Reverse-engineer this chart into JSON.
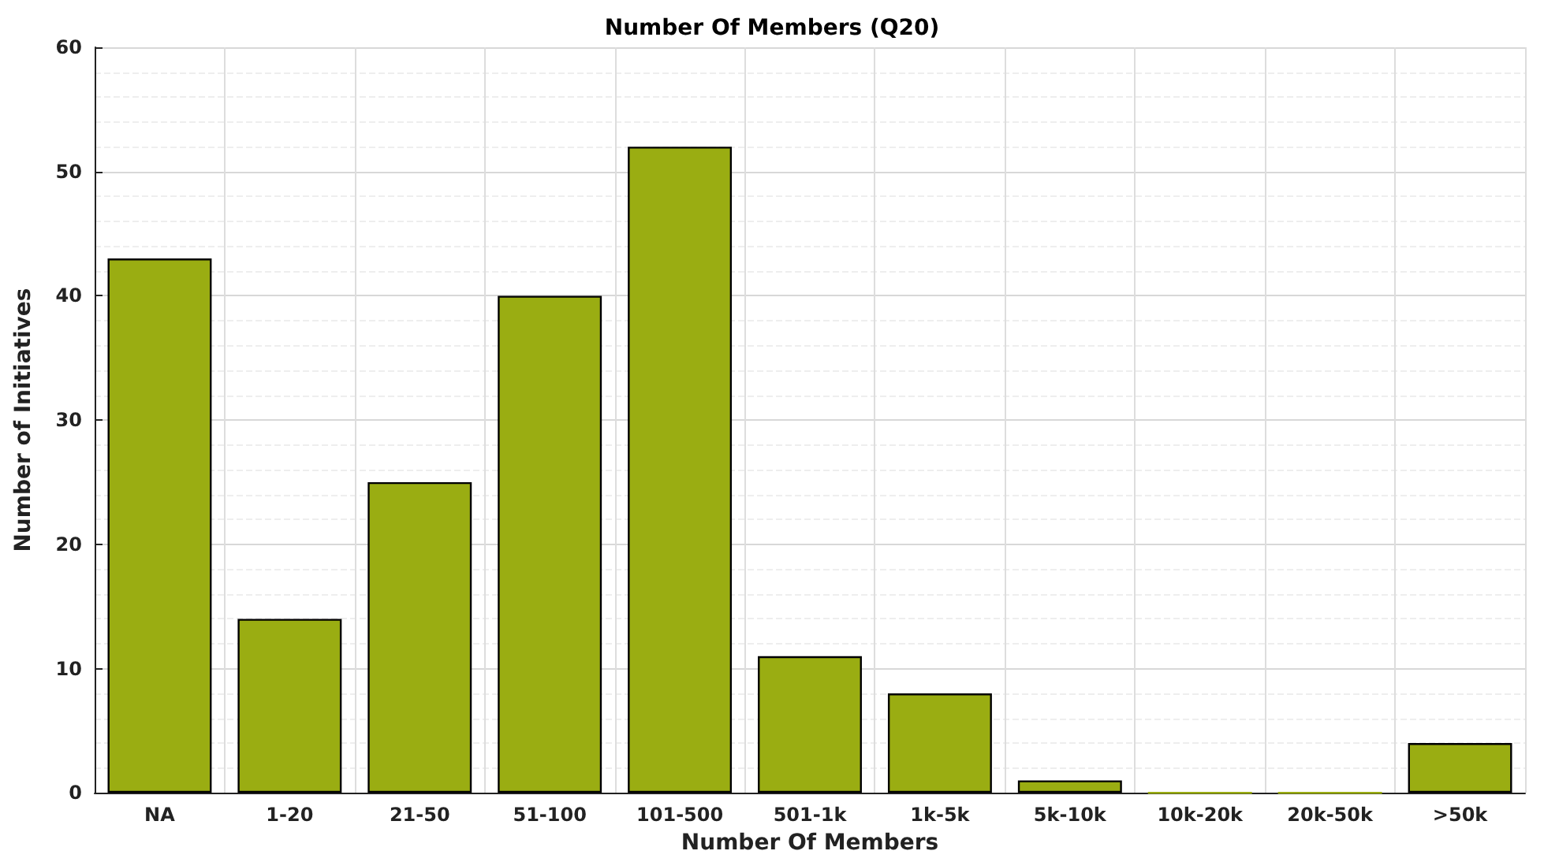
{
  "chart_data": {
    "type": "bar",
    "title": "Number Of Members (Q20)",
    "xlabel": "Number Of Members",
    "ylabel": "Number of Initiatives",
    "categories": [
      "NA",
      "1-20",
      "21-50",
      "51-100",
      "101-500",
      "501-1k",
      "1k-5k",
      "5k-10k",
      "10k-20k",
      "20k-50k",
      ">50k"
    ],
    "values": [
      43,
      14,
      25,
      40,
      52,
      11,
      8,
      1,
      0,
      0,
      4
    ],
    "color": "#9aad12",
    "ylim": [
      0,
      60
    ],
    "yticks": [
      0,
      10,
      20,
      30,
      40,
      50,
      60
    ],
    "grid": true
  }
}
